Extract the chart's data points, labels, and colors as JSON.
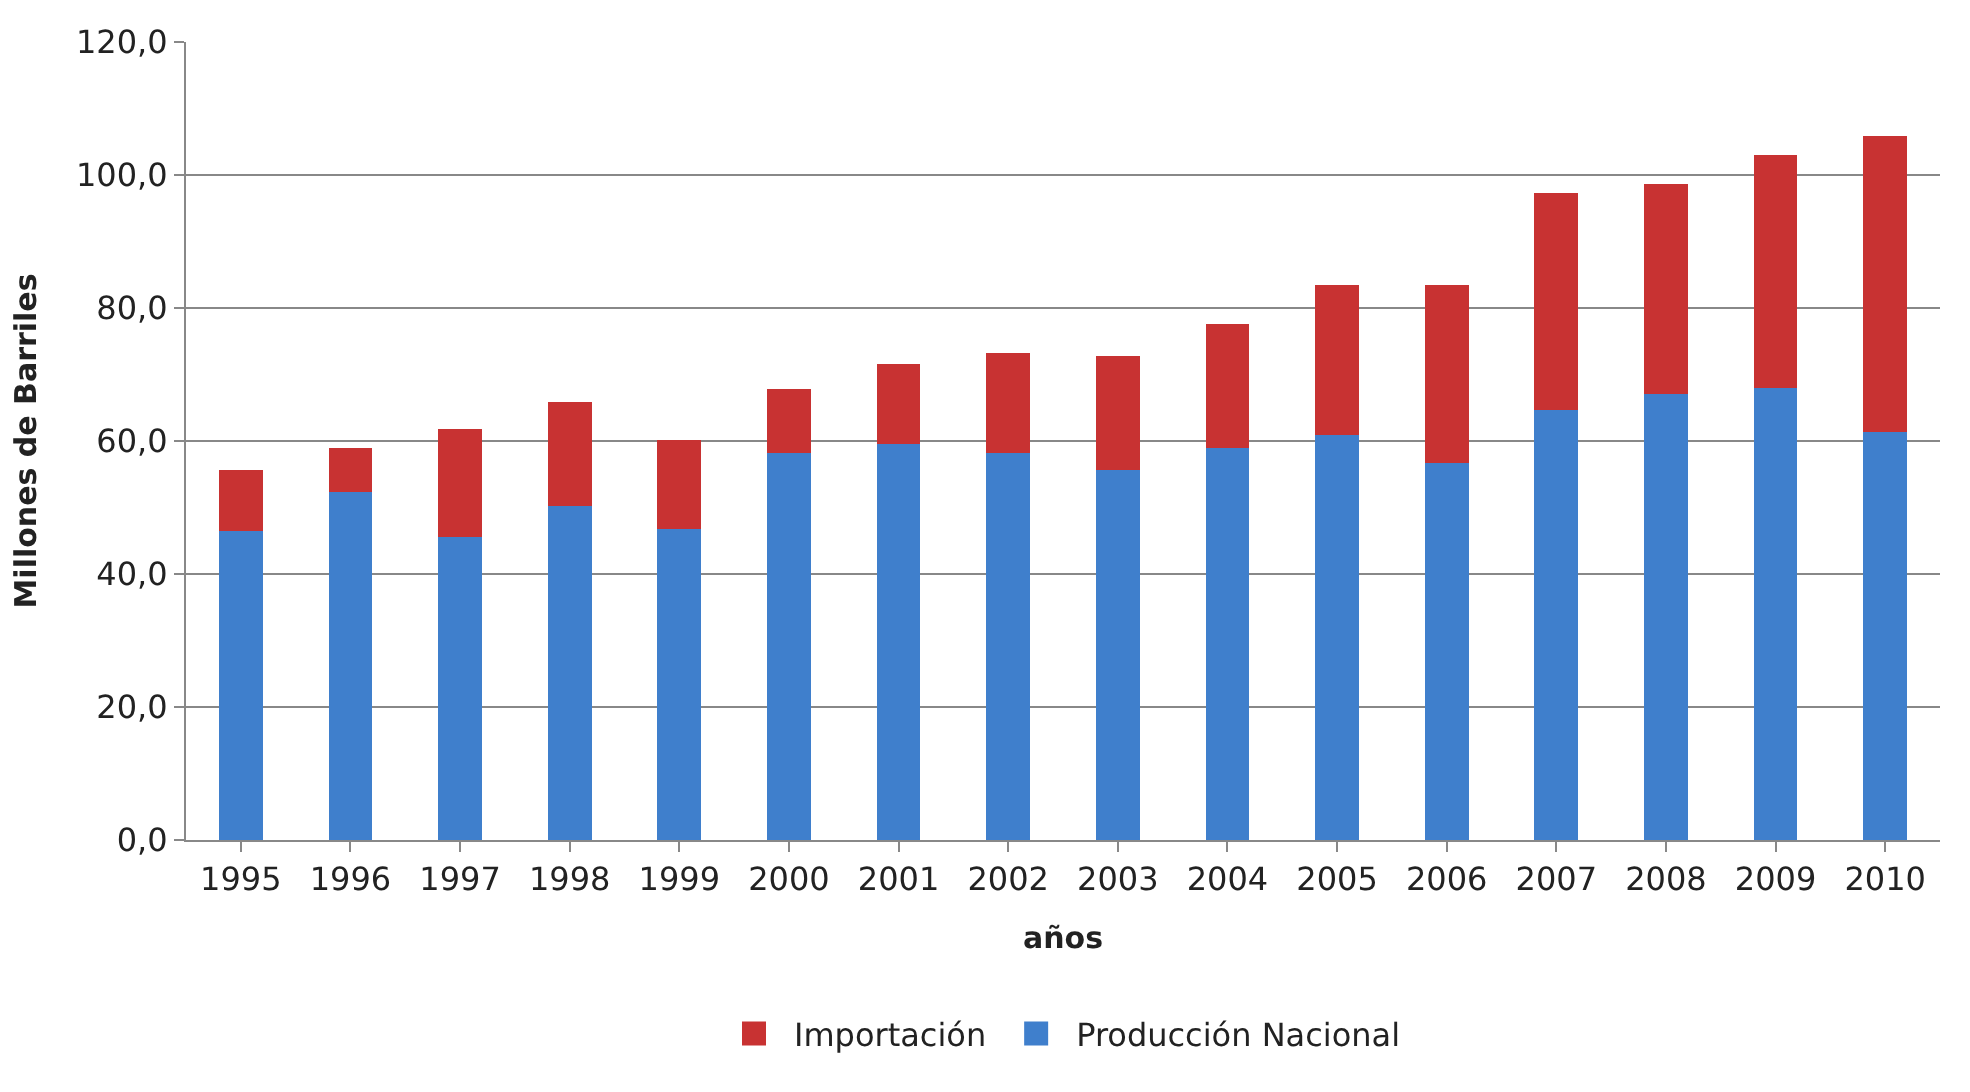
{
  "chart_data": {
    "type": "bar",
    "stacked": true,
    "xlabel": "años",
    "ylabel": "Millones de Barriles",
    "categories": [
      "1995",
      "1996",
      "1997",
      "1998",
      "1999",
      "2000",
      "2001",
      "2002",
      "2003",
      "2004",
      "2005",
      "2006",
      "2007",
      "2008",
      "2009",
      "2010"
    ],
    "series": [
      {
        "name": "Producción Nacional",
        "color": "#3f7fcc",
        "values": [
          46.5,
          52.3,
          45.6,
          50.3,
          46.8,
          58.2,
          59.6,
          58.2,
          55.6,
          58.9,
          60.9,
          56.7,
          64.7,
          67.1,
          68.0,
          61.4
        ]
      },
      {
        "name": "Importación",
        "color": "#c83232",
        "values": [
          9.1,
          6.7,
          16.2,
          15.5,
          13.4,
          9.6,
          12.0,
          15.1,
          17.2,
          18.7,
          22.5,
          26.7,
          32.6,
          31.6,
          35.0,
          44.5
        ]
      }
    ],
    "ylim": [
      0,
      120
    ],
    "yticks": [
      {
        "value": 0,
        "label": "0,0"
      },
      {
        "value": 20,
        "label": "20,0"
      },
      {
        "value": 40,
        "label": "40,0"
      },
      {
        "value": 60,
        "label": "60,0"
      },
      {
        "value": 80,
        "label": "80,0"
      },
      {
        "value": 100,
        "label": "100,0"
      },
      {
        "value": 120,
        "label": "120,0"
      }
    ],
    "grid": "y",
    "legend": "bottom"
  }
}
